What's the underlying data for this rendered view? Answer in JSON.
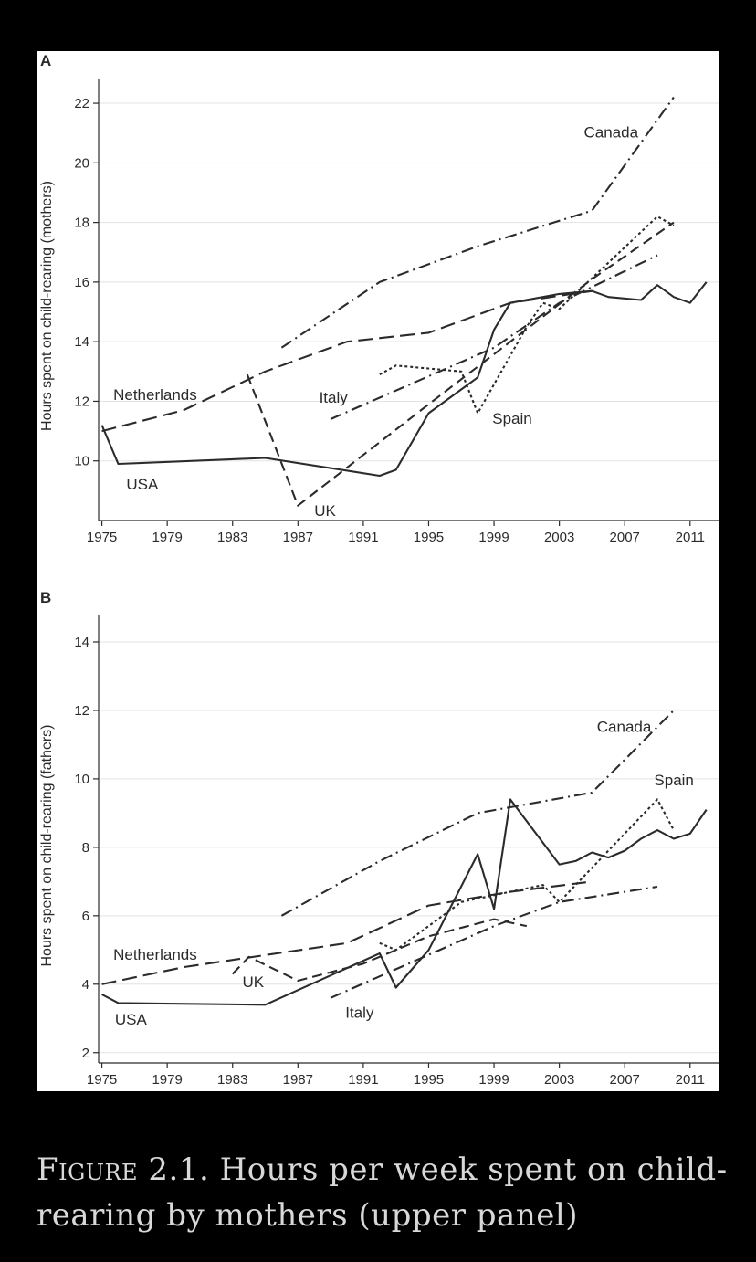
{
  "caption": {
    "label": "Figure 2.1.",
    "text": "Hours per week spent on child-rearing by mothers (upper panel)"
  },
  "chart_data": [
    {
      "type": "line",
      "panel_label": "A",
      "ylabel": "Hours spent on child-rearing (mothers)",
      "xlim": [
        1974.8,
        2012.8
      ],
      "ylim": [
        8,
        22.4
      ],
      "xticks": [
        1975,
        1979,
        1983,
        1987,
        1991,
        1995,
        1999,
        2003,
        2007,
        2011
      ],
      "yticks": [
        10,
        12,
        14,
        16,
        18,
        20,
        22
      ],
      "grid": true,
      "legend": "none (direct labels)",
      "series": [
        {
          "name": "USA",
          "dash": "solid",
          "points": [
            [
              1975,
              11.2
            ],
            [
              1976,
              9.9
            ],
            [
              1985,
              10.1
            ],
            [
              1992,
              9.5
            ],
            [
              1993,
              9.7
            ],
            [
              1995,
              11.6
            ],
            [
              1998,
              12.8
            ],
            [
              1999,
              14.4
            ],
            [
              2000,
              15.3
            ],
            [
              2003,
              15.6
            ],
            [
              2005,
              15.7
            ],
            [
              2006,
              15.5
            ],
            [
              2008,
              15.4
            ],
            [
              2009,
              15.9
            ],
            [
              2010,
              15.5
            ],
            [
              2011,
              15.3
            ],
            [
              2012,
              16.0
            ]
          ]
        },
        {
          "name": "Netherlands",
          "dash": "longdash",
          "points": [
            [
              1975,
              11.0
            ],
            [
              1980,
              11.7
            ],
            [
              1985,
              13.0
            ],
            [
              1990,
              14.0
            ],
            [
              1995,
              14.3
            ],
            [
              2000,
              15.3
            ],
            [
              2005,
              15.7
            ]
          ]
        },
        {
          "name": "UK",
          "dash": "dash",
          "points": [
            [
              1983.9,
              12.9
            ],
            [
              1987,
              8.5
            ],
            [
              1995,
              11.9
            ],
            [
              2000,
              14.0
            ],
            [
              2005,
              16.1
            ],
            [
              2010,
              18.0
            ]
          ]
        },
        {
          "name": "Italy",
          "dash": "dashdot",
          "points": [
            [
              1989,
              11.4
            ],
            [
              1999,
              13.8
            ],
            [
              2003,
              15.3
            ],
            [
              2009,
              16.9
            ]
          ]
        },
        {
          "name": "Spain",
          "dash": "dot",
          "points": [
            [
              1992,
              12.9
            ],
            [
              1993,
              13.2
            ],
            [
              1997,
              13.0
            ],
            [
              1998,
              11.6
            ],
            [
              2001,
              14.5
            ],
            [
              2002,
              15.3
            ],
            [
              2003,
              15.1
            ],
            [
              2009,
              18.2
            ],
            [
              2010,
              17.9
            ]
          ]
        },
        {
          "name": "Canada",
          "dash": "dashdot",
          "points": [
            [
              1986,
              13.8
            ],
            [
              1992,
              16.0
            ],
            [
              1998,
              17.2
            ],
            [
              2005,
              18.4
            ],
            [
              2010,
              22.2
            ]
          ]
        }
      ],
      "labels": [
        {
          "text": "Netherlands",
          "x": 1975.7,
          "y": 12.2
        },
        {
          "text": "USA",
          "x": 1976.5,
          "y": 9.2
        },
        {
          "text": "UK",
          "x": 1988,
          "y": 8.3
        },
        {
          "text": "Italy",
          "x": 1988.3,
          "y": 12.1
        },
        {
          "text": "Spain",
          "x": 1998.9,
          "y": 11.4
        },
        {
          "text": "Canada",
          "x": 2004.5,
          "y": 21.0
        }
      ]
    },
    {
      "type": "line",
      "panel_label": "B",
      "ylabel": "Hours spent on child-rearing (fathers)",
      "xlim": [
        1974.8,
        2012.8
      ],
      "ylim": [
        1.7,
        14.4
      ],
      "xticks": [
        1975,
        1979,
        1983,
        1987,
        1991,
        1995,
        1999,
        2003,
        2007,
        2011
      ],
      "yticks": [
        2,
        4,
        6,
        8,
        10,
        12,
        14
      ],
      "grid": true,
      "legend": "none (direct labels)",
      "series": [
        {
          "name": "USA",
          "dash": "solid",
          "points": [
            [
              1975,
              3.7
            ],
            [
              1976,
              3.45
            ],
            [
              1985,
              3.4
            ],
            [
              1992,
              4.9
            ],
            [
              1993,
              3.9
            ],
            [
              1995,
              5.0
            ],
            [
              1998,
              7.8
            ],
            [
              1999,
              6.2
            ],
            [
              2000,
              9.4
            ],
            [
              2003,
              7.5
            ],
            [
              2004,
              7.6
            ],
            [
              2005,
              7.85
            ],
            [
              2006,
              7.7
            ],
            [
              2007,
              7.9
            ],
            [
              2008,
              8.25
            ],
            [
              2009,
              8.5
            ],
            [
              2010,
              8.25
            ],
            [
              2011,
              8.4
            ],
            [
              2012,
              9.1
            ]
          ]
        },
        {
          "name": "Netherlands",
          "dash": "longdash",
          "points": [
            [
              1975,
              4.0
            ],
            [
              1980,
              4.5
            ],
            [
              1985,
              4.85
            ],
            [
              1990,
              5.2
            ],
            [
              1995,
              6.3
            ],
            [
              2000,
              6.7
            ],
            [
              2005,
              7.0
            ]
          ]
        },
        {
          "name": "UK",
          "dash": "dash",
          "points": [
            [
              1983,
              4.3
            ],
            [
              1984,
              4.8
            ],
            [
              1987,
              4.1
            ],
            [
              1991,
              4.6
            ],
            [
              1995,
              5.4
            ],
            [
              1999,
              5.9
            ],
            [
              2001,
              5.7
            ]
          ]
        },
        {
          "name": "Italy",
          "dash": "dashdot",
          "points": [
            [
              1989,
              3.6
            ],
            [
              1999,
              5.7
            ],
            [
              2003,
              6.4
            ],
            [
              2009,
              6.85
            ]
          ]
        },
        {
          "name": "Spain",
          "dash": "dot",
          "points": [
            [
              1992,
              5.2
            ],
            [
              1993,
              5.0
            ],
            [
              1997,
              6.4
            ],
            [
              1999,
              6.6
            ],
            [
              2002,
              6.9
            ],
            [
              2003,
              6.4
            ],
            [
              2009,
              9.4
            ],
            [
              2010,
              8.5
            ]
          ]
        },
        {
          "name": "Canada",
          "dash": "dashdot",
          "points": [
            [
              1986,
              6.0
            ],
            [
              1992,
              7.6
            ],
            [
              1998,
              9.0
            ],
            [
              2005,
              9.6
            ],
            [
              2010,
              12.0
            ]
          ]
        }
      ],
      "labels": [
        {
          "text": "Netherlands",
          "x": 1975.7,
          "y": 4.85
        },
        {
          "text": "UK",
          "x": 1983.6,
          "y": 4.05
        },
        {
          "text": "USA",
          "x": 1975.8,
          "y": 2.95
        },
        {
          "text": "Italy",
          "x": 1989.9,
          "y": 3.15
        },
        {
          "text": "Spain",
          "x": 2008.8,
          "y": 9.95
        },
        {
          "text": "Canada",
          "x": 2005.3,
          "y": 11.5
        }
      ]
    }
  ]
}
